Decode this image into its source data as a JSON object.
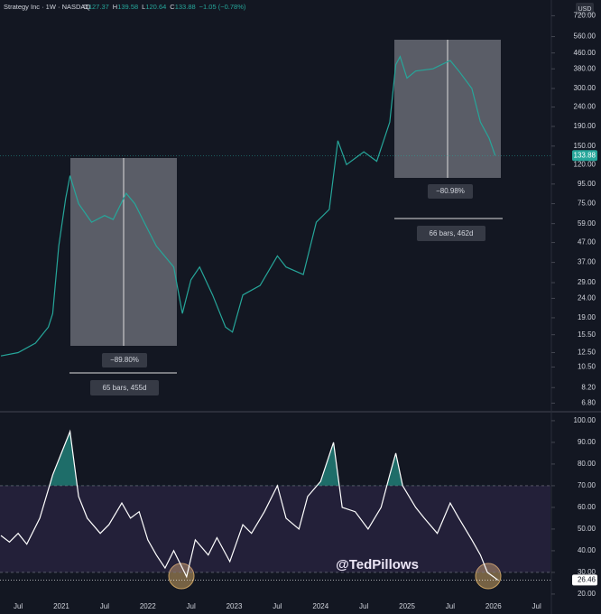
{
  "chart_data": [
    {
      "type": "line",
      "title": "Strategy Inc · 1W · NASDAQ",
      "header_values": [
        {
          "label": "O",
          "value": 127.37
        },
        {
          "label": "H",
          "value": 139.58
        },
        {
          "label": "L",
          "value": 120.64
        },
        {
          "label": "C",
          "value": 133.88
        }
      ],
      "change": "−1.05 (−0.78%)",
      "currency": "USD",
      "last_value": 133.88,
      "log_scale": true,
      "color": "#26a69a",
      "x": [
        2020.3,
        2020.5,
        2020.7,
        2020.85,
        2020.9,
        2020.97,
        2021.05,
        2021.1,
        2021.2,
        2021.35,
        2021.5,
        2021.6,
        2021.75,
        2021.85,
        2022.0,
        2022.1,
        2022.3,
        2022.4,
        2022.5,
        2022.6,
        2022.75,
        2022.9,
        2022.98,
        2023.1,
        2023.3,
        2023.5,
        2023.6,
        2023.8,
        2023.95,
        2024.1,
        2024.2,
        2024.3,
        2024.5,
        2024.65,
        2024.8,
        2024.87,
        2024.92,
        2025.0,
        2025.1,
        2025.3,
        2025.5,
        2025.6,
        2025.75,
        2025.85,
        2025.95,
        2026.02
      ],
      "values": [
        12,
        12.5,
        14,
        17,
        20,
        45,
        80,
        105,
        75,
        60,
        65,
        62,
        85,
        75,
        55,
        45,
        35,
        20,
        30,
        35,
        25,
        17,
        16,
        25,
        28,
        40,
        35,
        32,
        60,
        70,
        160,
        120,
        140,
        125,
        200,
        400,
        440,
        340,
        370,
        380,
        420,
        370,
        300,
        200,
        165,
        133.88
      ],
      "xlim": [
        2020.29,
        2026.66
      ],
      "ylim": [
        6.2,
        870
      ],
      "yticks": [
        {
          "value": 720,
          "label": "720.00"
        },
        {
          "value": 560,
          "label": "560.00"
        },
        {
          "value": 460,
          "label": "460.00"
        },
        {
          "value": 380,
          "label": "380.00"
        },
        {
          "value": 300,
          "label": "300.00"
        },
        {
          "value": 240,
          "label": "240.00"
        },
        {
          "value": 190,
          "label": "190.00"
        },
        {
          "value": 150,
          "label": "150.00"
        },
        {
          "value": 120,
          "label": "120.00"
        },
        {
          "value": 95,
          "label": "95.00"
        },
        {
          "value": 75,
          "label": "75.00"
        },
        {
          "value": 59,
          "label": "59.00"
        },
        {
          "value": 47,
          "label": "47.00"
        },
        {
          "value": 37,
          "label": "37.00"
        },
        {
          "value": 29,
          "label": "29.00"
        },
        {
          "value": 24,
          "label": "24.00"
        },
        {
          "value": 19,
          "label": "19.00"
        },
        {
          "value": 15.5,
          "label": "15.50"
        },
        {
          "value": 12.5,
          "label": "12.50"
        },
        {
          "value": 10.5,
          "label": "10.50"
        },
        {
          "value": 8.2,
          "label": "8.20"
        },
        {
          "value": 6.8,
          "label": "6.80"
        }
      ],
      "annotations": [
        "−89.80%",
        "65 bars, 455d",
        "−80.98%",
        "66 bars, 462d"
      ]
    },
    {
      "type": "line",
      "color": "#ffffff",
      "last_value": 26.46,
      "band": [
        30,
        70
      ],
      "watermark": "@TedPillows",
      "x": [
        2020.3,
        2020.4,
        2020.5,
        2020.6,
        2020.75,
        2020.9,
        2021.0,
        2021.1,
        2021.2,
        2021.3,
        2021.45,
        2021.55,
        2021.7,
        2021.8,
        2021.9,
        2022.0,
        2022.1,
        2022.2,
        2022.3,
        2022.4,
        2022.45,
        2022.55,
        2022.7,
        2022.8,
        2022.95,
        2023.1,
        2023.2,
        2023.35,
        2023.5,
        2023.6,
        2023.75,
        2023.85,
        2024.0,
        2024.15,
        2024.25,
        2024.4,
        2024.55,
        2024.7,
        2024.8,
        2024.87,
        2024.95,
        2025.1,
        2025.2,
        2025.35,
        2025.5,
        2025.6,
        2025.75,
        2025.85,
        2025.93,
        2026.0,
        2026.05
      ],
      "values": [
        47,
        44,
        48,
        43,
        55,
        75,
        85,
        95,
        65,
        55,
        48,
        52,
        62,
        55,
        58,
        45,
        38,
        32,
        40,
        32,
        28,
        45,
        38,
        46,
        35,
        52,
        48,
        58,
        70,
        55,
        50,
        65,
        72,
        90,
        60,
        58,
        50,
        60,
        75,
        85,
        70,
        60,
        55,
        48,
        62,
        55,
        45,
        38,
        30,
        28,
        26.46
      ],
      "xlim": [
        2020.29,
        2026.66
      ],
      "ylim": [
        18.3,
        103.3
      ],
      "yticks": [
        {
          "value": 100,
          "label": "100.00"
        },
        {
          "value": 90,
          "label": "90.00"
        },
        {
          "value": 80,
          "label": "80.00"
        },
        {
          "value": 70,
          "label": "70.00"
        },
        {
          "value": 60,
          "label": "60.00"
        },
        {
          "value": 50,
          "label": "50.00"
        },
        {
          "value": 40,
          "label": "40.00"
        },
        {
          "value": 30,
          "label": "30.00"
        },
        {
          "value": 20,
          "label": "20.00"
        }
      ],
      "xticks": [
        {
          "value": 2020.5,
          "label": "Jul"
        },
        2021,
        {
          "value": 2021.5,
          "label": "Jul"
        },
        2022,
        {
          "value": 2022.5,
          "label": "Jul"
        },
        2023,
        {
          "value": 2023.5,
          "label": "Jul"
        },
        2024,
        {
          "value": 2024.5,
          "label": "Jul"
        },
        2025,
        {
          "value": 2025.5,
          "label": "Jul"
        },
        2026,
        {
          "value": 2026.5,
          "label": "Jul"
        }
      ]
    }
  ]
}
